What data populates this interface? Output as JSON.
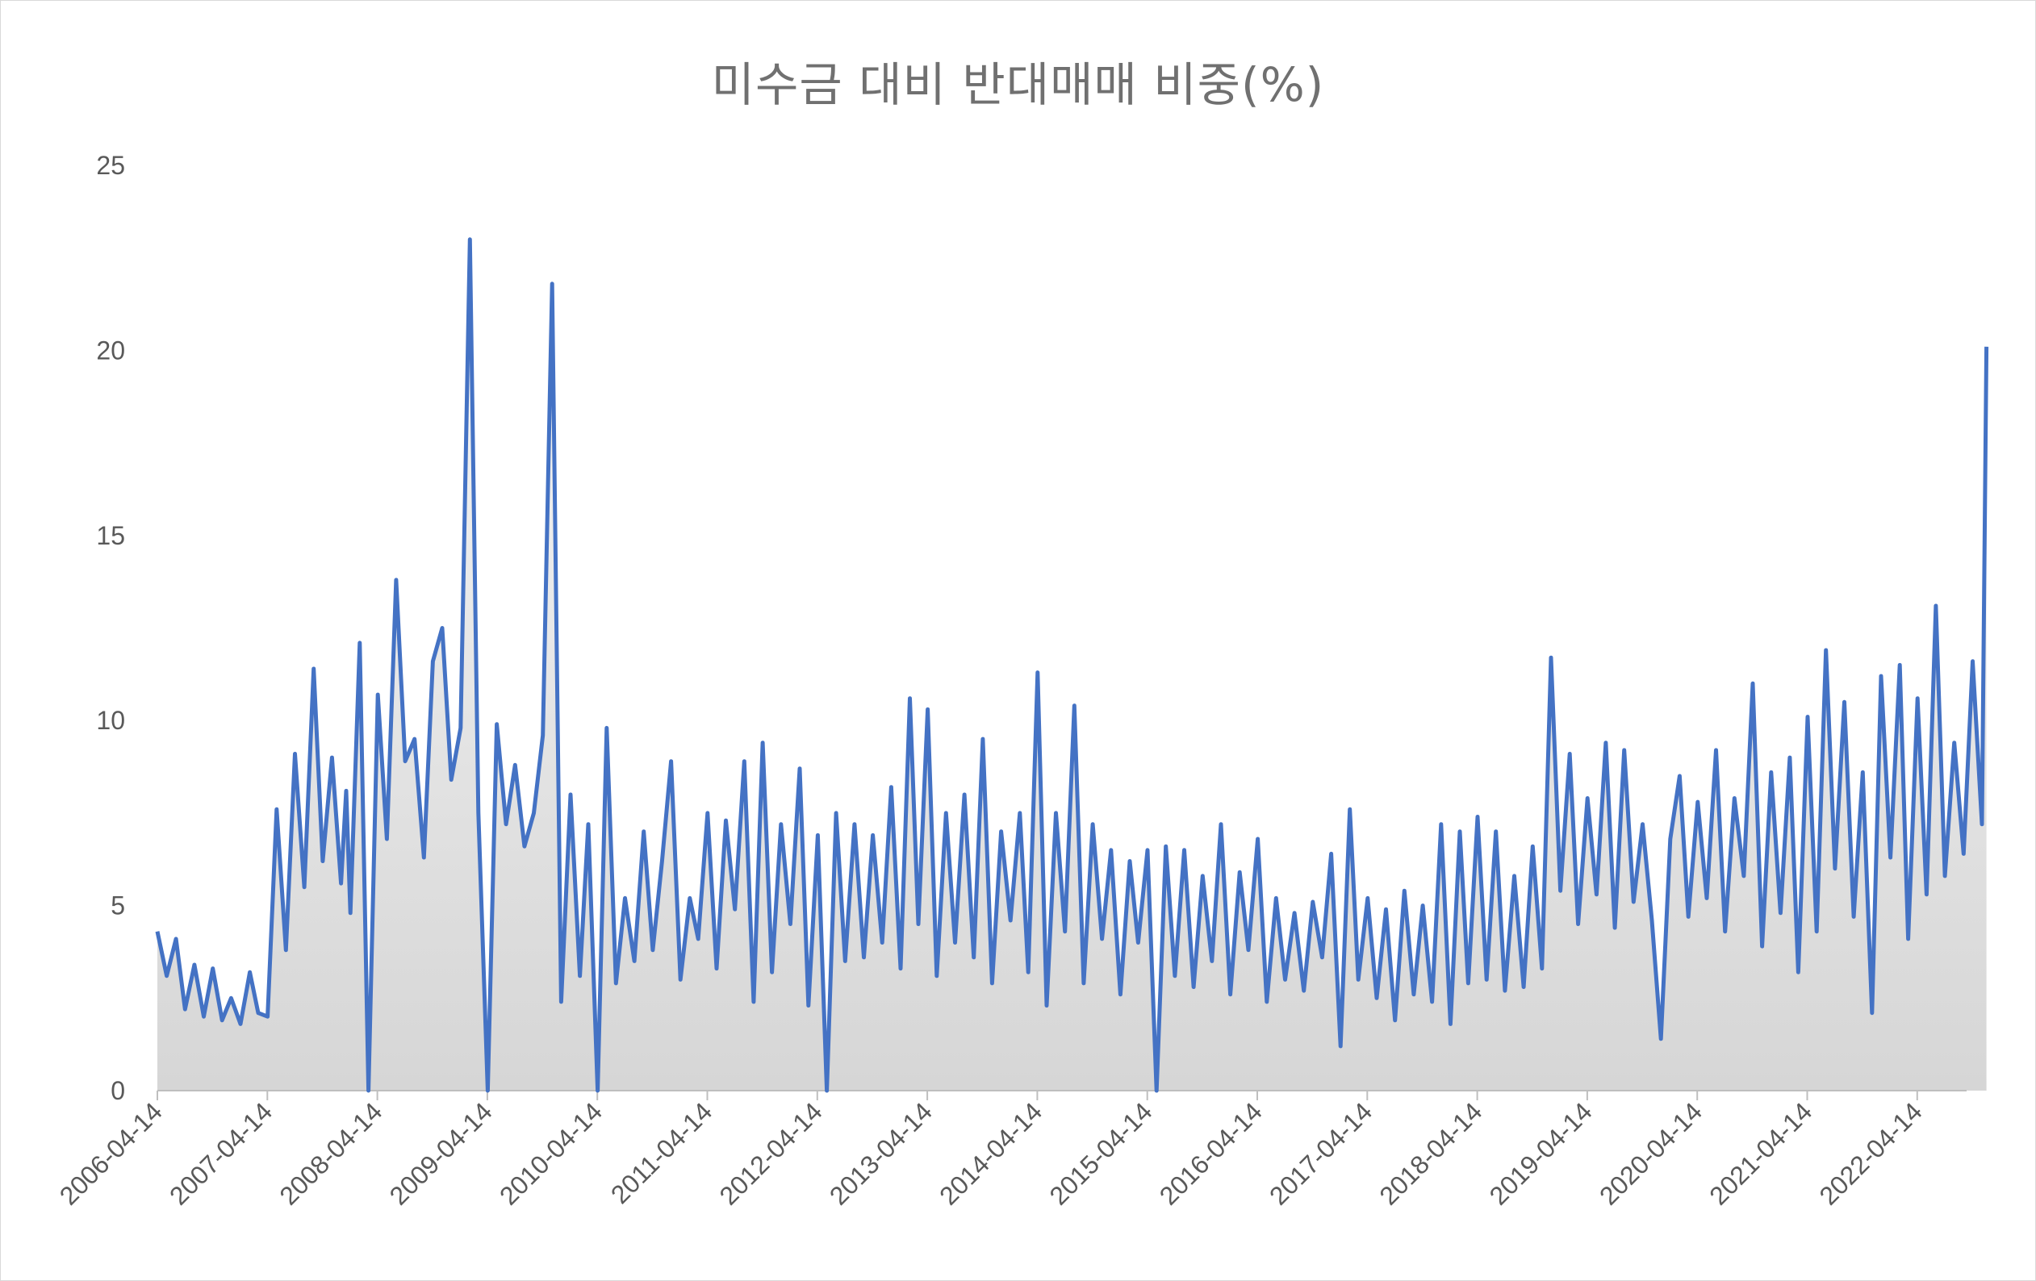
{
  "chart_data": {
    "type": "area",
    "title": "미수금 대비 반대매매 비중(%)",
    "xlabel": "",
    "ylabel": "",
    "ylim": [
      0,
      25
    ],
    "yticks": [
      0,
      5,
      10,
      15,
      20,
      25
    ],
    "x_range": [
      "2006-04-14",
      "2022-11-30"
    ],
    "x_tick_labels": [
      "2006-04-14",
      "2007-04-14",
      "2008-04-14",
      "2009-04-14",
      "2010-04-14",
      "2011-04-14",
      "2012-04-14",
      "2013-04-14",
      "2014-04-14",
      "2015-04-14",
      "2016-04-14",
      "2017-04-14",
      "2018-04-14",
      "2019-04-14",
      "2020-04-14",
      "2021-04-14",
      "2022-04-14"
    ],
    "grid": false,
    "legend": "none",
    "colors": {
      "line": "#4472c4",
      "area_top": "#f7f7f7",
      "area_bottom": "#d6d6d6",
      "text": "#595959",
      "title": "#707070"
    },
    "series": [
      {
        "x": [
          "2006-04-14",
          "2006-05-15",
          "2006-06-15",
          "2006-07-15",
          "2006-08-15",
          "2006-09-15",
          "2006-10-15",
          "2006-11-15",
          "2006-12-15",
          "2007-01-15",
          "2007-02-15",
          "2007-03-15",
          "2007-04-15",
          "2007-05-15",
          "2007-06-15",
          "2007-07-15",
          "2007-08-15",
          "2007-09-15",
          "2007-10-15",
          "2007-11-15",
          "2007-12-15",
          "2008-01-01",
          "2008-01-15",
          "2008-02-15",
          "2008-03-15",
          "2008-04-15",
          "2008-05-15",
          "2008-06-15",
          "2008-07-15",
          "2008-08-15",
          "2008-09-15",
          "2008-10-15",
          "2008-11-15",
          "2008-12-15",
          "2009-01-15",
          "2009-02-15",
          "2009-03-15",
          "2009-04-15",
          "2009-05-15",
          "2009-06-15",
          "2009-07-15",
          "2009-08-15",
          "2009-09-15",
          "2009-10-15",
          "2009-11-15",
          "2009-12-15",
          "2010-01-15",
          "2010-02-15",
          "2010-03-15",
          "2010-04-15",
          "2010-05-15",
          "2010-06-15",
          "2010-07-15",
          "2010-08-15",
          "2010-09-15",
          "2010-10-15",
          "2010-11-15",
          "2010-12-15",
          "2011-01-15",
          "2011-02-15",
          "2011-03-15",
          "2011-04-15",
          "2011-05-15",
          "2011-06-15",
          "2011-07-15",
          "2011-08-15",
          "2011-09-15",
          "2011-10-15",
          "2011-11-15",
          "2011-12-15",
          "2012-01-15",
          "2012-02-15",
          "2012-03-15",
          "2012-04-15",
          "2012-05-15",
          "2012-06-15",
          "2012-07-15",
          "2012-08-15",
          "2012-09-15",
          "2012-10-15",
          "2012-11-15",
          "2012-12-15",
          "2013-01-15",
          "2013-02-15",
          "2013-03-15",
          "2013-04-15",
          "2013-05-15",
          "2013-06-15",
          "2013-07-15",
          "2013-08-15",
          "2013-09-15",
          "2013-10-15",
          "2013-11-15",
          "2013-12-15",
          "2014-01-15",
          "2014-02-15",
          "2014-03-15",
          "2014-04-15",
          "2014-05-15",
          "2014-06-15",
          "2014-07-15",
          "2014-08-15",
          "2014-09-15",
          "2014-10-15",
          "2014-11-15",
          "2014-12-15",
          "2015-01-15",
          "2015-02-15",
          "2015-03-15",
          "2015-04-15",
          "2015-05-15",
          "2015-06-15",
          "2015-07-15",
          "2015-08-15",
          "2015-09-15",
          "2015-10-15",
          "2015-11-15",
          "2015-12-15",
          "2016-01-15",
          "2016-02-15",
          "2016-03-15",
          "2016-04-15",
          "2016-05-15",
          "2016-06-15",
          "2016-07-15",
          "2016-08-15",
          "2016-09-15",
          "2016-10-15",
          "2016-11-15",
          "2016-12-15",
          "2017-01-15",
          "2017-02-15",
          "2017-03-15",
          "2017-04-15",
          "2017-05-15",
          "2017-06-15",
          "2017-07-15",
          "2017-08-15",
          "2017-09-15",
          "2017-10-15",
          "2017-11-15",
          "2017-12-15",
          "2018-01-15",
          "2018-02-15",
          "2018-03-15",
          "2018-04-15",
          "2018-05-15",
          "2018-06-15",
          "2018-07-15",
          "2018-08-15",
          "2018-09-15",
          "2018-10-15",
          "2018-11-15",
          "2018-12-15",
          "2019-01-15",
          "2019-02-15",
          "2019-03-15",
          "2019-04-15",
          "2019-05-15",
          "2019-06-15",
          "2019-07-15",
          "2019-08-15",
          "2019-09-15",
          "2019-10-15",
          "2019-11-15",
          "2019-12-15",
          "2020-01-15",
          "2020-02-15",
          "2020-03-15",
          "2020-04-15",
          "2020-05-15",
          "2020-06-15",
          "2020-07-15",
          "2020-08-15",
          "2020-09-15",
          "2020-10-15",
          "2020-11-15",
          "2020-12-15",
          "2021-01-15",
          "2021-02-15",
          "2021-03-15",
          "2021-04-15",
          "2021-05-15",
          "2021-06-15",
          "2021-07-15",
          "2021-08-15",
          "2021-09-15",
          "2021-10-15",
          "2021-11-15",
          "2021-12-15",
          "2022-01-15",
          "2022-02-15",
          "2022-03-15",
          "2022-04-15",
          "2022-05-15",
          "2022-06-15",
          "2022-07-15",
          "2022-08-15",
          "2022-09-15",
          "2022-10-15",
          "2022-11-15",
          "2022-11-30"
        ],
        "y": [
          4.3,
          3.1,
          4.1,
          2.2,
          3.4,
          2.0,
          3.3,
          1.9,
          2.5,
          1.8,
          3.2,
          2.1,
          2.0,
          7.6,
          3.8,
          9.1,
          5.5,
          11.4,
          6.2,
          9.0,
          5.6,
          8.1,
          4.8,
          12.1,
          0.0,
          10.7,
          6.8,
          13.8,
          8.9,
          9.5,
          6.3,
          11.6,
          12.5,
          8.4,
          9.8,
          23.0,
          7.5,
          0.0,
          9.9,
          7.2,
          8.8,
          6.6,
          7.5,
          9.6,
          21.8,
          2.4,
          8.0,
          3.1,
          7.2,
          0.0,
          9.8,
          2.9,
          5.2,
          3.5,
          7.0,
          3.8,
          6.2,
          8.9,
          3.0,
          5.2,
          4.1,
          7.5,
          3.3,
          7.3,
          4.9,
          8.9,
          2.4,
          9.4,
          3.2,
          7.2,
          4.5,
          8.7,
          2.3,
          6.9,
          0.0,
          7.5,
          3.5,
          7.2,
          3.6,
          6.9,
          4.0,
          8.2,
          3.3,
          10.6,
          4.5,
          10.3,
          3.1,
          7.5,
          4.0,
          8.0,
          3.6,
          9.5,
          2.9,
          7.0,
          4.6,
          7.5,
          3.2,
          11.3,
          2.3,
          7.5,
          4.3,
          10.4,
          2.9,
          7.2,
          4.1,
          6.5,
          2.6,
          6.2,
          4.0,
          6.5,
          0.0,
          6.6,
          3.1,
          6.5,
          2.8,
          5.8,
          3.5,
          7.2,
          2.6,
          5.9,
          3.8,
          6.8,
          2.4,
          5.2,
          3.0,
          4.8,
          2.7,
          5.1,
          3.6,
          6.4,
          1.2,
          7.6,
          3.0,
          5.2,
          2.5,
          4.9,
          1.9,
          5.4,
          2.6,
          5.0,
          2.4,
          7.2,
          1.8,
          7.0,
          2.9,
          7.4,
          3.0,
          7.0,
          2.7,
          5.8,
          2.8,
          6.6,
          3.3,
          11.7,
          5.4,
          9.1,
          4.5,
          7.9,
          5.3,
          9.4,
          4.4,
          9.2,
          5.1,
          7.2,
          4.6,
          1.4,
          6.8,
          8.5,
          4.7,
          7.8,
          5.2,
          9.2,
          4.3,
          7.9,
          5.8,
          11.0,
          3.9,
          8.6,
          4.8,
          9.0,
          3.2,
          10.1,
          4.3,
          11.9,
          6.0,
          10.5,
          4.7,
          8.6,
          2.1,
          11.2,
          6.3,
          11.5,
          4.1,
          10.6,
          5.3,
          13.1,
          5.8,
          9.4,
          6.4,
          11.6,
          7.2,
          20.1
        ]
      }
    ]
  }
}
